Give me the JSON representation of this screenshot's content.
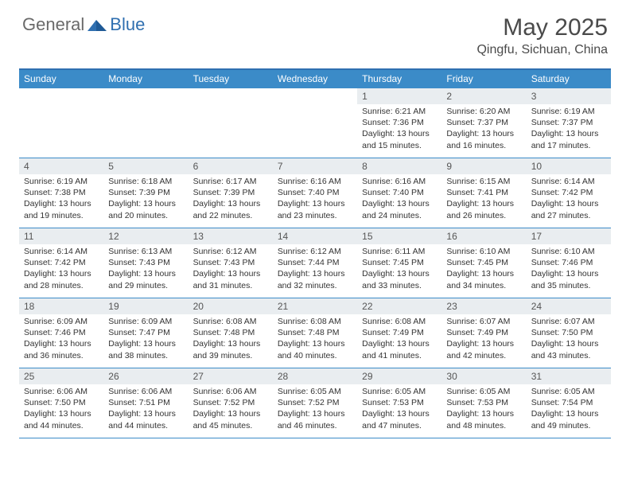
{
  "brand": {
    "first": "General",
    "second": "Blue"
  },
  "title": "May 2025",
  "location": "Qingfu, Sichuan, China",
  "colors": {
    "header_bg": "#3b8bc8",
    "header_text": "#ffffff",
    "daynum_bg": "#e9edf0",
    "border": "#3b8bc8",
    "title_color": "#4a4a4a",
    "brand_blue": "#2f6fb0"
  },
  "weekdays": [
    "Sunday",
    "Monday",
    "Tuesday",
    "Wednesday",
    "Thursday",
    "Friday",
    "Saturday"
  ],
  "layout": {
    "columns": 7,
    "rows": 5,
    "first_day_column_index": 4,
    "days_in_month": 31
  },
  "days": [
    {
      "n": 1,
      "sunrise": "6:21 AM",
      "sunset": "7:36 PM",
      "daylight": "13 hours and 15 minutes."
    },
    {
      "n": 2,
      "sunrise": "6:20 AM",
      "sunset": "7:37 PM",
      "daylight": "13 hours and 16 minutes."
    },
    {
      "n": 3,
      "sunrise": "6:19 AM",
      "sunset": "7:37 PM",
      "daylight": "13 hours and 17 minutes."
    },
    {
      "n": 4,
      "sunrise": "6:19 AM",
      "sunset": "7:38 PM",
      "daylight": "13 hours and 19 minutes."
    },
    {
      "n": 5,
      "sunrise": "6:18 AM",
      "sunset": "7:39 PM",
      "daylight": "13 hours and 20 minutes."
    },
    {
      "n": 6,
      "sunrise": "6:17 AM",
      "sunset": "7:39 PM",
      "daylight": "13 hours and 22 minutes."
    },
    {
      "n": 7,
      "sunrise": "6:16 AM",
      "sunset": "7:40 PM",
      "daylight": "13 hours and 23 minutes."
    },
    {
      "n": 8,
      "sunrise": "6:16 AM",
      "sunset": "7:40 PM",
      "daylight": "13 hours and 24 minutes."
    },
    {
      "n": 9,
      "sunrise": "6:15 AM",
      "sunset": "7:41 PM",
      "daylight": "13 hours and 26 minutes."
    },
    {
      "n": 10,
      "sunrise": "6:14 AM",
      "sunset": "7:42 PM",
      "daylight": "13 hours and 27 minutes."
    },
    {
      "n": 11,
      "sunrise": "6:14 AM",
      "sunset": "7:42 PM",
      "daylight": "13 hours and 28 minutes."
    },
    {
      "n": 12,
      "sunrise": "6:13 AM",
      "sunset": "7:43 PM",
      "daylight": "13 hours and 29 minutes."
    },
    {
      "n": 13,
      "sunrise": "6:12 AM",
      "sunset": "7:43 PM",
      "daylight": "13 hours and 31 minutes."
    },
    {
      "n": 14,
      "sunrise": "6:12 AM",
      "sunset": "7:44 PM",
      "daylight": "13 hours and 32 minutes."
    },
    {
      "n": 15,
      "sunrise": "6:11 AM",
      "sunset": "7:45 PM",
      "daylight": "13 hours and 33 minutes."
    },
    {
      "n": 16,
      "sunrise": "6:10 AM",
      "sunset": "7:45 PM",
      "daylight": "13 hours and 34 minutes."
    },
    {
      "n": 17,
      "sunrise": "6:10 AM",
      "sunset": "7:46 PM",
      "daylight": "13 hours and 35 minutes."
    },
    {
      "n": 18,
      "sunrise": "6:09 AM",
      "sunset": "7:46 PM",
      "daylight": "13 hours and 36 minutes."
    },
    {
      "n": 19,
      "sunrise": "6:09 AM",
      "sunset": "7:47 PM",
      "daylight": "13 hours and 38 minutes."
    },
    {
      "n": 20,
      "sunrise": "6:08 AM",
      "sunset": "7:48 PM",
      "daylight": "13 hours and 39 minutes."
    },
    {
      "n": 21,
      "sunrise": "6:08 AM",
      "sunset": "7:48 PM",
      "daylight": "13 hours and 40 minutes."
    },
    {
      "n": 22,
      "sunrise": "6:08 AM",
      "sunset": "7:49 PM",
      "daylight": "13 hours and 41 minutes."
    },
    {
      "n": 23,
      "sunrise": "6:07 AM",
      "sunset": "7:49 PM",
      "daylight": "13 hours and 42 minutes."
    },
    {
      "n": 24,
      "sunrise": "6:07 AM",
      "sunset": "7:50 PM",
      "daylight": "13 hours and 43 minutes."
    },
    {
      "n": 25,
      "sunrise": "6:06 AM",
      "sunset": "7:50 PM",
      "daylight": "13 hours and 44 minutes."
    },
    {
      "n": 26,
      "sunrise": "6:06 AM",
      "sunset": "7:51 PM",
      "daylight": "13 hours and 44 minutes."
    },
    {
      "n": 27,
      "sunrise": "6:06 AM",
      "sunset": "7:52 PM",
      "daylight": "13 hours and 45 minutes."
    },
    {
      "n": 28,
      "sunrise": "6:05 AM",
      "sunset": "7:52 PM",
      "daylight": "13 hours and 46 minutes."
    },
    {
      "n": 29,
      "sunrise": "6:05 AM",
      "sunset": "7:53 PM",
      "daylight": "13 hours and 47 minutes."
    },
    {
      "n": 30,
      "sunrise": "6:05 AM",
      "sunset": "7:53 PM",
      "daylight": "13 hours and 48 minutes."
    },
    {
      "n": 31,
      "sunrise": "6:05 AM",
      "sunset": "7:54 PM",
      "daylight": "13 hours and 49 minutes."
    }
  ],
  "labels": {
    "sunrise": "Sunrise:",
    "sunset": "Sunset:",
    "daylight": "Daylight:"
  }
}
